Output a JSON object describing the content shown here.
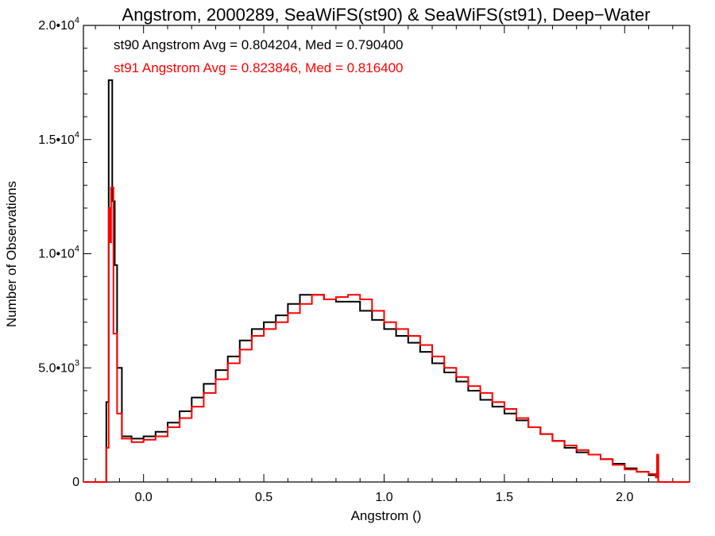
{
  "chart_data": {
    "type": "line",
    "title": "Angstrom, 2000289, SeaWiFS(st90) & SeaWiFS(st91), Deep−Water",
    "xlabel": "Angstrom ()",
    "ylabel": "Number of Observations",
    "xlim": [
      -0.25,
      2.27
    ],
    "ylim": [
      0,
      20000
    ],
    "x_ticks": [
      {
        "value": 0.0,
        "label": "0.0"
      },
      {
        "value": 0.5,
        "label": "0.5"
      },
      {
        "value": 1.0,
        "label": "1.0"
      },
      {
        "value": 1.5,
        "label": "1.5"
      },
      {
        "value": 2.0,
        "label": "2.0"
      }
    ],
    "y_ticks": [
      {
        "value": 0,
        "mantissa": "0",
        "exponent": ""
      },
      {
        "value": 5000,
        "mantissa": "5.0•10",
        "exponent": "3"
      },
      {
        "value": 10000,
        "mantissa": "1.0•10",
        "exponent": "4"
      },
      {
        "value": 15000,
        "mantissa": "1.5•10",
        "exponent": "4"
      },
      {
        "value": 20000,
        "mantissa": "2.0•10",
        "exponent": "4"
      }
    ],
    "grid": false,
    "legend_position": "top-left",
    "annotations": [
      {
        "text": "st90 Angstrom Avg = 0.804204, Med = 0.790400",
        "color": "#000000"
      },
      {
        "text": "st91 Angstrom Avg = 0.823846, Med = 0.816400",
        "color": "#ff0000"
      }
    ],
    "series": [
      {
        "color": "#000000",
        "style": "histogram-step",
        "points": [
          [
            -0.25,
            0
          ],
          [
            -0.16,
            0
          ],
          [
            -0.155,
            3500
          ],
          [
            -0.145,
            17600
          ],
          [
            -0.13,
            12300
          ],
          [
            -0.12,
            9500
          ],
          [
            -0.11,
            5000
          ],
          [
            -0.09,
            2000
          ],
          [
            -0.05,
            1900
          ],
          [
            0.0,
            2000
          ],
          [
            0.05,
            2200
          ],
          [
            0.1,
            2600
          ],
          [
            0.15,
            3100
          ],
          [
            0.2,
            3700
          ],
          [
            0.25,
            4300
          ],
          [
            0.3,
            4900
          ],
          [
            0.35,
            5500
          ],
          [
            0.4,
            6200
          ],
          [
            0.45,
            6700
          ],
          [
            0.5,
            7000
          ],
          [
            0.55,
            7300
          ],
          [
            0.6,
            7800
          ],
          [
            0.65,
            8200
          ],
          [
            0.7,
            8200
          ],
          [
            0.75,
            8000
          ],
          [
            0.8,
            7900
          ],
          [
            0.85,
            7900
          ],
          [
            0.9,
            7500
          ],
          [
            0.95,
            7100
          ],
          [
            1.0,
            6700
          ],
          [
            1.05,
            6400
          ],
          [
            1.1,
            6100
          ],
          [
            1.15,
            5700
          ],
          [
            1.2,
            5200
          ],
          [
            1.25,
            4800
          ],
          [
            1.3,
            4400
          ],
          [
            1.35,
            4000
          ],
          [
            1.4,
            3600
          ],
          [
            1.45,
            3300
          ],
          [
            1.5,
            3000
          ],
          [
            1.55,
            2700
          ],
          [
            1.6,
            2400
          ],
          [
            1.65,
            2100
          ],
          [
            1.7,
            1800
          ],
          [
            1.75,
            1500
          ],
          [
            1.8,
            1300
          ],
          [
            1.85,
            1200
          ],
          [
            1.9,
            1000
          ],
          [
            1.95,
            800
          ],
          [
            2.0,
            600
          ],
          [
            2.05,
            450
          ],
          [
            2.1,
            300
          ],
          [
            2.13,
            250
          ],
          [
            2.135,
            1100
          ],
          [
            2.14,
            0
          ],
          [
            2.27,
            0
          ]
        ]
      },
      {
        "color": "#ff0000",
        "style": "histogram-step",
        "points": [
          [
            -0.25,
            0
          ],
          [
            -0.16,
            0
          ],
          [
            -0.155,
            1500
          ],
          [
            -0.145,
            12000
          ],
          [
            -0.14,
            10500
          ],
          [
            -0.135,
            12900
          ],
          [
            -0.125,
            6500
          ],
          [
            -0.11,
            3000
          ],
          [
            -0.09,
            1900
          ],
          [
            -0.05,
            1750
          ],
          [
            0.0,
            1850
          ],
          [
            0.05,
            2000
          ],
          [
            0.1,
            2400
          ],
          [
            0.15,
            2800
          ],
          [
            0.2,
            3300
          ],
          [
            0.25,
            3900
          ],
          [
            0.3,
            4500
          ],
          [
            0.35,
            5200
          ],
          [
            0.4,
            5800
          ],
          [
            0.45,
            6400
          ],
          [
            0.5,
            6700
          ],
          [
            0.55,
            7000
          ],
          [
            0.6,
            7400
          ],
          [
            0.65,
            7800
          ],
          [
            0.7,
            8200
          ],
          [
            0.75,
            8000
          ],
          [
            0.8,
            8100
          ],
          [
            0.85,
            8200
          ],
          [
            0.9,
            8000
          ],
          [
            0.95,
            7500
          ],
          [
            1.0,
            7000
          ],
          [
            1.05,
            6700
          ],
          [
            1.1,
            6400
          ],
          [
            1.15,
            6000
          ],
          [
            1.2,
            5500
          ],
          [
            1.25,
            5000
          ],
          [
            1.3,
            4600
          ],
          [
            1.35,
            4200
          ],
          [
            1.4,
            3900
          ],
          [
            1.45,
            3500
          ],
          [
            1.5,
            3200
          ],
          [
            1.55,
            2800
          ],
          [
            1.6,
            2400
          ],
          [
            1.65,
            2100
          ],
          [
            1.7,
            1800
          ],
          [
            1.75,
            1600
          ],
          [
            1.8,
            1400
          ],
          [
            1.85,
            1200
          ],
          [
            1.9,
            1000
          ],
          [
            1.95,
            750
          ],
          [
            2.0,
            550
          ],
          [
            2.05,
            450
          ],
          [
            2.1,
            350
          ],
          [
            2.13,
            200
          ],
          [
            2.135,
            1200
          ],
          [
            2.14,
            0
          ],
          [
            2.27,
            0
          ]
        ]
      }
    ]
  }
}
